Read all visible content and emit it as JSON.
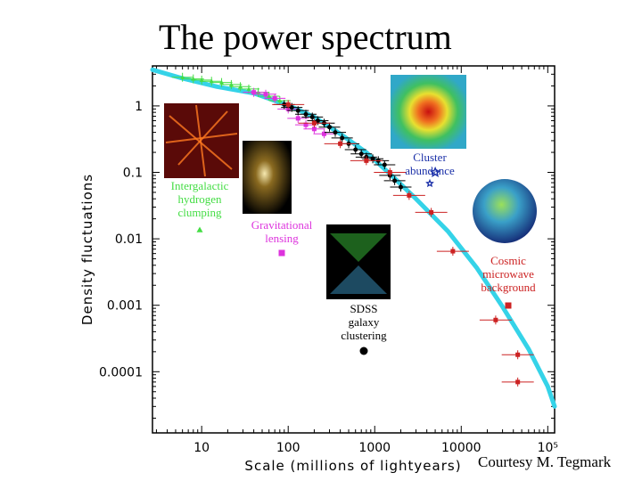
{
  "title": "The power spectrum",
  "credit": "Courtesy M. Tegmark",
  "chart_data": {
    "type": "scatter",
    "xlabel": "Scale (millions of lightyears)",
    "ylabel": "Density fluctuations",
    "xscale": "log",
    "yscale": "log",
    "xlim": [
      2.7,
      120000
    ],
    "ylim": [
      1.2e-05,
      4
    ],
    "x_ticks": [
      {
        "value": 10,
        "label": "10"
      },
      {
        "value": 100,
        "label": "100"
      },
      {
        "value": 1000,
        "label": "1000"
      },
      {
        "value": 10000,
        "label": "10000"
      },
      {
        "value": 100000,
        "label": "10⁵"
      }
    ],
    "y_ticks": [
      {
        "value": 1,
        "label": "1"
      },
      {
        "value": 0.1,
        "label": "0.1"
      },
      {
        "value": 0.01,
        "label": "0.01"
      },
      {
        "value": 0.001,
        "label": "0.001"
      },
      {
        "value": 0.0001,
        "label": "0.0001"
      }
    ],
    "model_curve": {
      "color": "#35d3e8",
      "points": [
        [
          2.7,
          3.5
        ],
        [
          6,
          2.6
        ],
        [
          15,
          1.95
        ],
        [
          40,
          1.55
        ],
        [
          70,
          1.2
        ],
        [
          120,
          0.92
        ],
        [
          200,
          0.68
        ],
        [
          400,
          0.38
        ],
        [
          800,
          0.2
        ],
        [
          1500,
          0.095
        ],
        [
          3000,
          0.04
        ],
        [
          7000,
          0.013
        ],
        [
          15000,
          0.0037
        ],
        [
          30000,
          0.00095
        ],
        [
          60000,
          0.00022
        ],
        [
          100000,
          6e-05
        ],
        [
          120000,
          3e-05
        ]
      ]
    },
    "series": [
      {
        "name": "Intergalactic hydrogen clumping",
        "color": "#44dd44",
        "marker": "triangle",
        "points": [
          [
            6,
            2.7
          ],
          [
            8,
            2.55
          ],
          [
            10,
            2.45
          ],
          [
            13,
            2.35
          ],
          [
            17,
            2.25
          ],
          [
            22,
            2.1
          ],
          [
            28,
            1.95
          ],
          [
            35,
            1.8
          ],
          [
            45,
            1.6
          ],
          [
            60,
            1.4
          ],
          [
            80,
            1.2
          ]
        ]
      },
      {
        "name": "Gravitational lensing",
        "color": "#dd33dd",
        "marker": "square",
        "points": [
          [
            40,
            1.6
          ],
          [
            55,
            1.5
          ],
          [
            70,
            1.3
          ],
          [
            100,
            0.9
          ],
          [
            130,
            0.65
          ],
          [
            160,
            0.52
          ],
          [
            200,
            0.45
          ],
          [
            260,
            0.38
          ]
        ]
      },
      {
        "name": "SDSS galaxy clustering",
        "color": "#000000",
        "marker": "circle",
        "points": [
          [
            90,
            1.05
          ],
          [
            110,
            0.95
          ],
          [
            130,
            0.85
          ],
          [
            160,
            0.75
          ],
          [
            190,
            0.68
          ],
          [
            220,
            0.6
          ],
          [
            260,
            0.55
          ],
          [
            300,
            0.48
          ],
          [
            350,
            0.4
          ],
          [
            420,
            0.33
          ],
          [
            500,
            0.27
          ],
          [
            600,
            0.22
          ],
          [
            700,
            0.19
          ],
          [
            800,
            0.17
          ],
          [
            950,
            0.16
          ],
          [
            1100,
            0.15
          ],
          [
            1300,
            0.13
          ],
          [
            1500,
            0.09
          ],
          [
            1700,
            0.075
          ],
          [
            2000,
            0.06
          ]
        ]
      },
      {
        "name": "Cluster abundance",
        "color": "#1a2fa8",
        "marker": "star",
        "points": [
          [
            5000,
            0.1
          ]
        ]
      },
      {
        "name": "Cosmic microwave background",
        "color": "#cc2222",
        "marker": "square",
        "points": [
          [
            100,
            1.05
          ],
          [
            200,
            0.55
          ],
          [
            400,
            0.27
          ],
          [
            800,
            0.15
          ],
          [
            1500,
            0.1
          ],
          [
            2500,
            0.045
          ],
          [
            4500,
            0.025
          ],
          [
            8000,
            0.0065
          ],
          [
            25000,
            0.0006
          ],
          [
            45000,
            0.00018
          ],
          [
            45000,
            7e-05
          ]
        ]
      }
    ],
    "annotations": [
      {
        "text": "Intergalactic hydrogen clumping",
        "lines": [
          "Intergalactic",
          "hydrogen",
          "clumping"
        ],
        "color": "#44dd44"
      },
      {
        "text": "Gravitational lensing",
        "lines": [
          "Gravitational",
          "lensing"
        ],
        "color": "#dd33dd"
      },
      {
        "text": "Cluster abundance",
        "lines": [
          "Cluster",
          "abundance"
        ],
        "color": "#1a2fa8"
      },
      {
        "text": "SDSS galaxy clustering",
        "lines": [
          "SDSS",
          "galaxy",
          "clustering"
        ],
        "color": "#000000"
      },
      {
        "text": "Cosmic microwave background",
        "lines": [
          "Cosmic",
          "microwave",
          "background"
        ],
        "color": "#cc2222"
      }
    ],
    "grid": false
  }
}
